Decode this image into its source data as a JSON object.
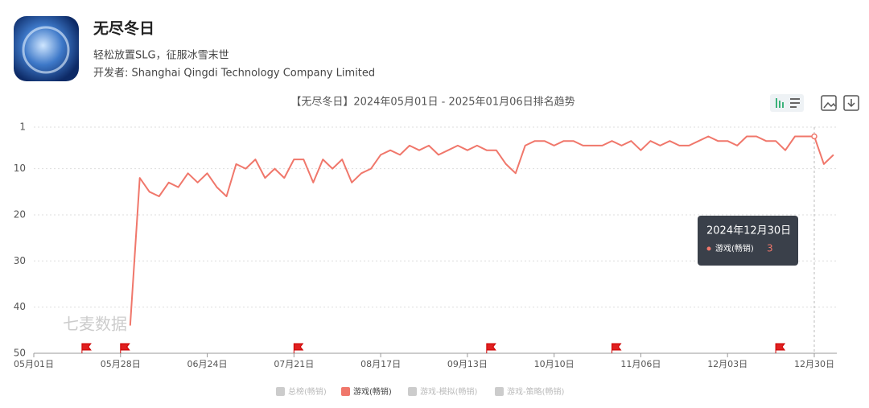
{
  "header": {
    "app_name": "无尽冬日",
    "subtitle": "轻松放置SLG，征服冰雪末世",
    "developer": "开发者: Shanghai Qingdi Technology Company Limited"
  },
  "watermark": "七麦数据",
  "chart_data": {
    "type": "line",
    "title": "【无尽冬日】2024年05月01日 - 2025年01月06日排名趋势",
    "categories": [
      "05月01日",
      null,
      null,
      null,
      null,
      null,
      null,
      null,
      null,
      "05月28日",
      null,
      null,
      null,
      null,
      null,
      null,
      null,
      null,
      "06月24日",
      null,
      null,
      null,
      null,
      null,
      null,
      null,
      null,
      "07月21日",
      null,
      null,
      null,
      null,
      null,
      null,
      null,
      null,
      "08月17日",
      null,
      null,
      null,
      null,
      null,
      null,
      null,
      null,
      "09月13日",
      null,
      null,
      null,
      null,
      null,
      null,
      null,
      null,
      "10月10日",
      null,
      null,
      null,
      null,
      null,
      null,
      null,
      null,
      "11月06日",
      null,
      null,
      null,
      null,
      null,
      null,
      null,
      null,
      "12月03日",
      null,
      null,
      null,
      null,
      null,
      null,
      null,
      null,
      "12月30日",
      null,
      null
    ],
    "series": [
      {
        "name": "游戏(畅销)",
        "color": "#f0776b",
        "values": [
          null,
          null,
          null,
          null,
          null,
          null,
          null,
          null,
          null,
          null,
          44,
          12,
          15,
          16,
          13,
          14,
          11,
          13,
          11,
          14,
          16,
          9,
          10,
          8,
          12,
          10,
          12,
          8,
          8,
          13,
          8,
          10,
          8,
          13,
          11,
          10,
          7,
          6,
          7,
          5,
          6,
          5,
          7,
          6,
          5,
          6,
          5,
          6,
          6,
          9,
          11,
          5,
          4,
          4,
          5,
          4,
          4,
          5,
          5,
          5,
          4,
          5,
          4,
          6,
          4,
          5,
          4,
          5,
          5,
          4,
          3,
          4,
          4,
          5,
          3,
          3,
          4,
          4,
          6,
          3,
          3,
          3,
          9,
          7
        ]
      }
    ],
    "legend": [
      {
        "name": "总榜(畅销)",
        "color": "#cccccc"
      },
      {
        "name": "游戏(畅销)",
        "color": "#f0776b"
      },
      {
        "name": "游戏-模拟(畅销)",
        "color": "#cccccc"
      },
      {
        "name": "游戏-策略(畅销)",
        "color": "#cccccc"
      }
    ],
    "ylim": [
      1,
      50
    ],
    "yticks": [
      1,
      10,
      20,
      30,
      40,
      50
    ],
    "y_reversed": true,
    "grid": true,
    "flags": [
      5,
      9,
      27,
      47,
      60,
      77
    ],
    "tooltip": {
      "date": "2024年12月30日",
      "index": 81
    }
  }
}
